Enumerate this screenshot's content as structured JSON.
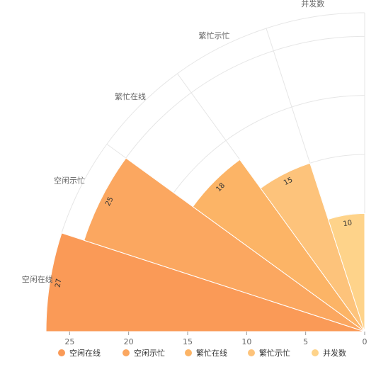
{
  "chart_data": {
    "type": "bar",
    "variant": "polar-half-rose",
    "categories": [
      "空闲在线",
      "空闲示忙",
      "繁忙在线",
      "繁忙示忙",
      "并发数"
    ],
    "values": [
      27,
      25,
      18,
      15,
      10
    ],
    "radial_axis": {
      "min": 0,
      "max": 27,
      "ticks": [
        0,
        5,
        10,
        15,
        20,
        25
      ]
    },
    "legend": {
      "position": "bottom",
      "items": [
        "空闲在线",
        "空闲示忙",
        "繁忙在线",
        "繁忙示忙",
        "并发数"
      ]
    },
    "colors": [
      "#FA9A57",
      "#FBA760",
      "#FCB466",
      "#FDC37B",
      "#FED38A"
    ],
    "grid": true,
    "data_labels": true
  }
}
